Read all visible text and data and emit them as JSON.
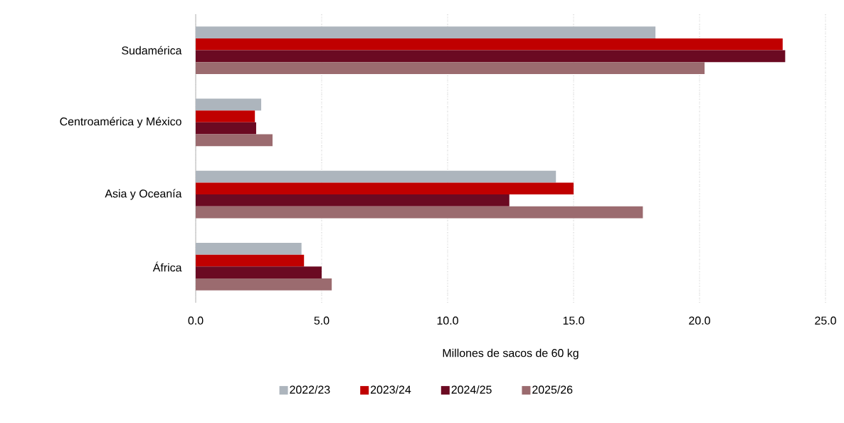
{
  "chart_data": {
    "type": "bar",
    "orientation": "horizontal",
    "xlabel": "Millones de sacos de 60 kg",
    "categories": [
      "Sudamérica",
      "Centroamérica y México",
      "Asia y Oceanía",
      "África"
    ],
    "series": [
      {
        "name": "2022/23",
        "color": "#adb5bd",
        "values": [
          18.25,
          2.6,
          14.3,
          4.2
        ]
      },
      {
        "name": "2023/24",
        "color": "#c00000",
        "values": [
          23.3,
          2.35,
          15.0,
          4.3
        ]
      },
      {
        "name": "2024/25",
        "color": "#6b0a22",
        "values": [
          23.4,
          2.4,
          12.45,
          5.0
        ]
      },
      {
        "name": "2025/26",
        "color": "#9b6b6f",
        "values": [
          20.2,
          3.05,
          17.75,
          5.4
        ]
      }
    ],
    "xlim": [
      0,
      25
    ],
    "xticks": [
      {
        "value": 0,
        "label": "0.0"
      },
      {
        "value": 5,
        "label": "5.0"
      },
      {
        "value": 10,
        "label": "10.0"
      },
      {
        "value": 15,
        "label": "15.0"
      },
      {
        "value": 20,
        "label": "20.0"
      },
      {
        "value": 25,
        "label": "25.0"
      }
    ],
    "grid": "x",
    "legend": "bottom"
  }
}
